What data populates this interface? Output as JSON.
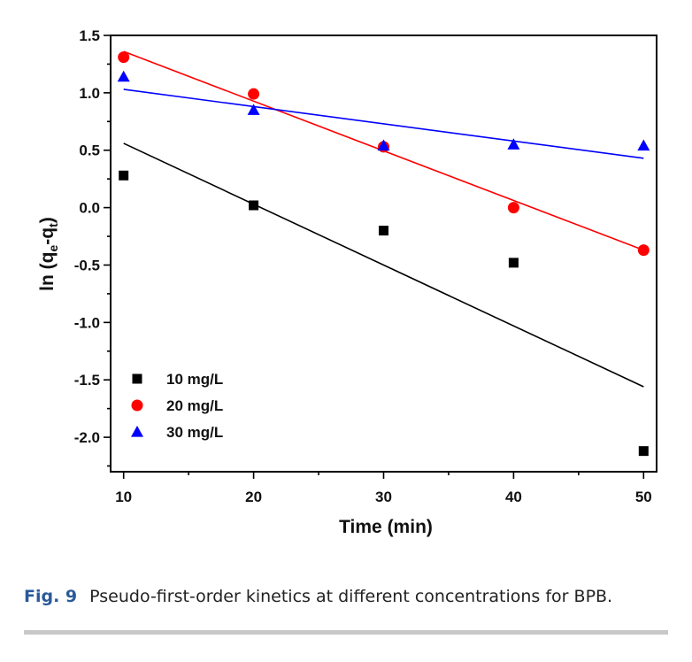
{
  "chart_data": {
    "type": "scatter",
    "xlabel": "Time (min)",
    "ylabel_main": "ln (q",
    "ylabel_sub1": "e",
    "ylabel_mid": "-q",
    "ylabel_sub2": "t",
    "ylabel_end": ")",
    "xlim": [
      9,
      51
    ],
    "ylim": [
      -2.3,
      1.5
    ],
    "x_ticks": [
      10,
      20,
      30,
      40,
      50
    ],
    "x_tick_labels": [
      "10",
      "20",
      "30",
      "40",
      "50"
    ],
    "y_ticks": [
      1.5,
      1.0,
      0.5,
      0.0,
      -0.5,
      -1.0,
      -1.5,
      -2.0
    ],
    "y_tick_labels": [
      "1.5",
      "1.0",
      "0.5",
      "0.0",
      "-0.5",
      "-1.0",
      "-1.5",
      "-2.0"
    ],
    "legend_position": "bottom-left",
    "series": [
      {
        "name": "10 mg/L",
        "color": "#000000",
        "marker": "square",
        "x": [
          10,
          20,
          30,
          40,
          50
        ],
        "y": [
          0.28,
          0.02,
          -0.2,
          -0.48,
          -2.12
        ],
        "fit": {
          "x": [
            10,
            50
          ],
          "y": [
            0.56,
            -1.56
          ]
        }
      },
      {
        "name": "20 mg/L",
        "color": "#ff0000",
        "marker": "circle",
        "x": [
          10,
          20,
          30,
          40,
          50
        ],
        "y": [
          1.31,
          0.99,
          0.53,
          0.0,
          -0.37
        ],
        "fit": {
          "x": [
            10,
            50
          ],
          "y": [
            1.36,
            -0.37
          ]
        }
      },
      {
        "name": "30 mg/L",
        "color": "#0000ff",
        "marker": "triangle",
        "x": [
          10,
          20,
          30,
          40,
          50
        ],
        "y": [
          1.14,
          0.85,
          0.54,
          0.55,
          0.54
        ],
        "fit": {
          "x": [
            10,
            50
          ],
          "y": [
            1.03,
            0.43
          ]
        }
      }
    ]
  },
  "caption": {
    "label": "Fig. 9",
    "text": "Pseudo-first-order kinetics at different concentrations for BPB."
  }
}
